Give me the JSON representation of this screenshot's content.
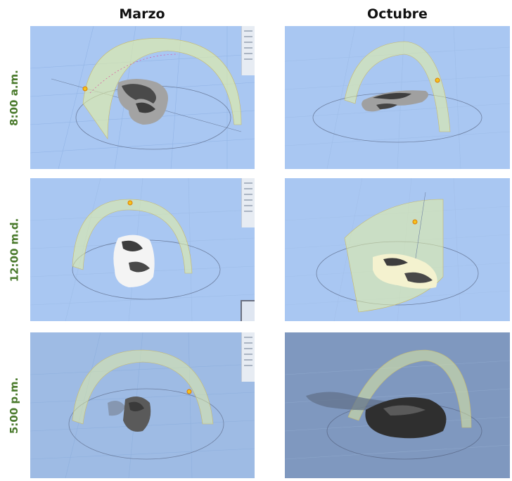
{
  "columns": [
    "Marzo",
    "Octubre"
  ],
  "rows": [
    "8:00 a.m.",
    "12:00 m.d.",
    "5:00 p.m."
  ],
  "colors": {
    "sky": "#a9c7f2",
    "grid": "#8fb2e3",
    "dome": "#e6f0a0",
    "sun": "#f3c21d",
    "label": "#4a7a2c",
    "evening_sky": "#8ea6c8"
  }
}
